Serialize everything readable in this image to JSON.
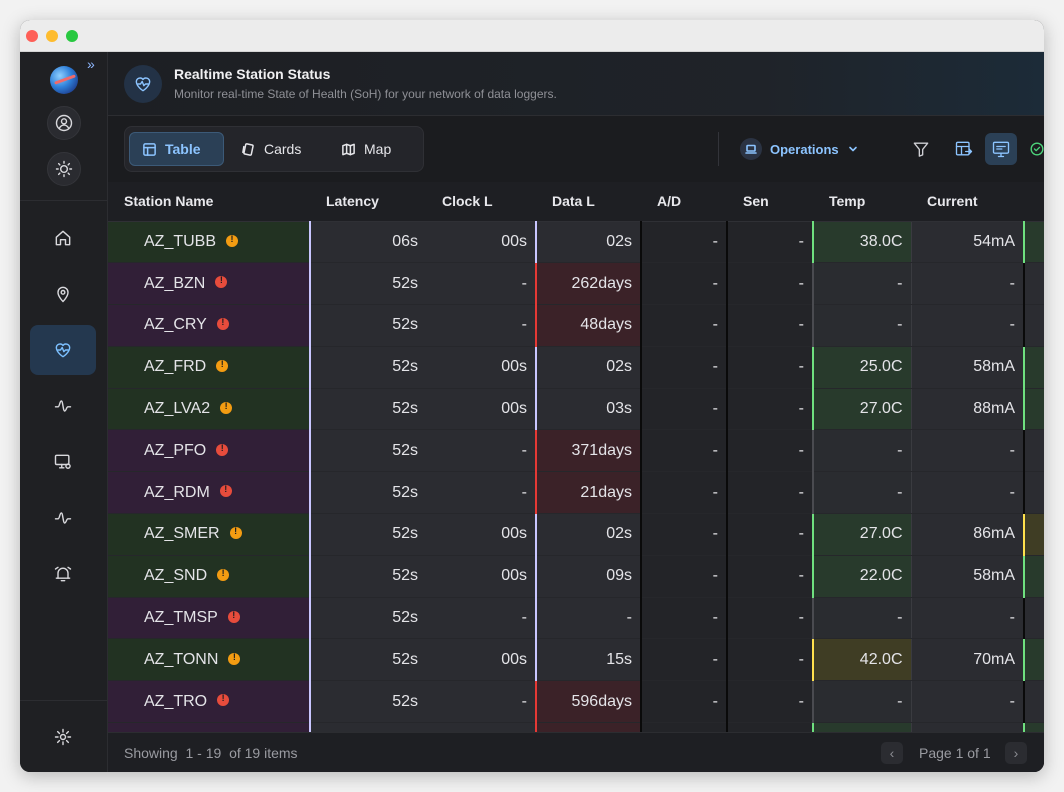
{
  "header": {
    "title": "Realtime Station Status",
    "subtitle": "Monitor real-time State of Health (SoH) for your network of data loggers."
  },
  "tabs": [
    {
      "label": "Table",
      "icon": "table-icon",
      "active": true
    },
    {
      "label": "Cards",
      "icon": "cards-icon",
      "active": false
    },
    {
      "label": "Map",
      "icon": "map-icon",
      "active": false
    }
  ],
  "toolbar": {
    "dropdown_label": "Operations"
  },
  "sidebar": {
    "items": [
      {
        "icon": "home-icon",
        "active": false
      },
      {
        "icon": "location-pin-icon",
        "active": false
      },
      {
        "icon": "heartbeat-icon",
        "active": true
      },
      {
        "icon": "waveform-icon",
        "active": false
      },
      {
        "icon": "monitor-settings-icon",
        "active": false
      },
      {
        "icon": "waveform-icon",
        "active": false
      },
      {
        "icon": "alarm-icon",
        "active": false
      }
    ]
  },
  "table": {
    "columns": [
      "Station Name",
      "Latency",
      "Clock L",
      "Data L",
      "A/D",
      "Sen",
      "Temp",
      "Current"
    ],
    "rows": [
      {
        "name": "AZ_TUBB",
        "status": "warn",
        "latency": "06s",
        "clock": "00s",
        "data": "02s",
        "data_bad": false,
        "ad": "-",
        "sen": "-",
        "temp": "38.0C",
        "temp_state": "ok",
        "current": "54mA",
        "extra": "g"
      },
      {
        "name": "AZ_BZN",
        "status": "err",
        "latency": "52s",
        "clock": "-",
        "data": "262days",
        "data_bad": true,
        "ad": "-",
        "sen": "-",
        "temp": "-",
        "temp_state": "none",
        "current": "-",
        "extra": "n"
      },
      {
        "name": "AZ_CRY",
        "status": "err",
        "latency": "52s",
        "clock": "-",
        "data": "48days",
        "data_bad": true,
        "ad": "-",
        "sen": "-",
        "temp": "-",
        "temp_state": "none",
        "current": "-",
        "extra": "n"
      },
      {
        "name": "AZ_FRD",
        "status": "warn",
        "latency": "52s",
        "clock": "00s",
        "data": "02s",
        "data_bad": false,
        "ad": "-",
        "sen": "-",
        "temp": "25.0C",
        "temp_state": "ok",
        "current": "58mA",
        "extra": "g"
      },
      {
        "name": "AZ_LVA2",
        "status": "warn",
        "latency": "52s",
        "clock": "00s",
        "data": "03s",
        "data_bad": false,
        "ad": "-",
        "sen": "-",
        "temp": "27.0C",
        "temp_state": "ok",
        "current": "88mA",
        "extra": "g"
      },
      {
        "name": "AZ_PFO",
        "status": "err",
        "latency": "52s",
        "clock": "-",
        "data": "371days",
        "data_bad": true,
        "ad": "-",
        "sen": "-",
        "temp": "-",
        "temp_state": "none",
        "current": "-",
        "extra": "n"
      },
      {
        "name": "AZ_RDM",
        "status": "err",
        "latency": "52s",
        "clock": "-",
        "data": "21days",
        "data_bad": true,
        "ad": "-",
        "sen": "-",
        "temp": "-",
        "temp_state": "none",
        "current": "-",
        "extra": "n"
      },
      {
        "name": "AZ_SMER",
        "status": "warn",
        "latency": "52s",
        "clock": "00s",
        "data": "02s",
        "data_bad": false,
        "ad": "-",
        "sen": "-",
        "temp": "27.0C",
        "temp_state": "ok",
        "current": "86mA",
        "extra": "y"
      },
      {
        "name": "AZ_SND",
        "status": "warn",
        "latency": "52s",
        "clock": "00s",
        "data": "09s",
        "data_bad": false,
        "ad": "-",
        "sen": "-",
        "temp": "22.0C",
        "temp_state": "ok",
        "current": "58mA",
        "extra": "g"
      },
      {
        "name": "AZ_TMSP",
        "status": "err",
        "latency": "52s",
        "clock": "-",
        "data": "-",
        "data_bad": false,
        "ad": "-",
        "sen": "-",
        "temp": "-",
        "temp_state": "none",
        "current": "-",
        "extra": "n"
      },
      {
        "name": "AZ_TONN",
        "status": "warn",
        "latency": "52s",
        "clock": "00s",
        "data": "15s",
        "data_bad": false,
        "ad": "-",
        "sen": "-",
        "temp": "42.0C",
        "temp_state": "hot",
        "current": "70mA",
        "extra": "g"
      },
      {
        "name": "AZ_TRO",
        "status": "err",
        "latency": "52s",
        "clock": "-",
        "data": "596days",
        "data_bad": true,
        "ad": "-",
        "sen": "-",
        "temp": "-",
        "temp_state": "none",
        "current": "-",
        "extra": "n"
      },
      {
        "name": "",
        "status": "err",
        "latency": "",
        "clock": "",
        "data": "",
        "data_bad": true,
        "ad": "",
        "sen": "",
        "temp": "",
        "temp_state": "ok",
        "current": "",
        "extra": "g"
      }
    ]
  },
  "footer": {
    "showing_label": "Showing",
    "range": "1 - 19",
    "of_label": "of 19 items",
    "page_info": "Page 1 of 1"
  }
}
